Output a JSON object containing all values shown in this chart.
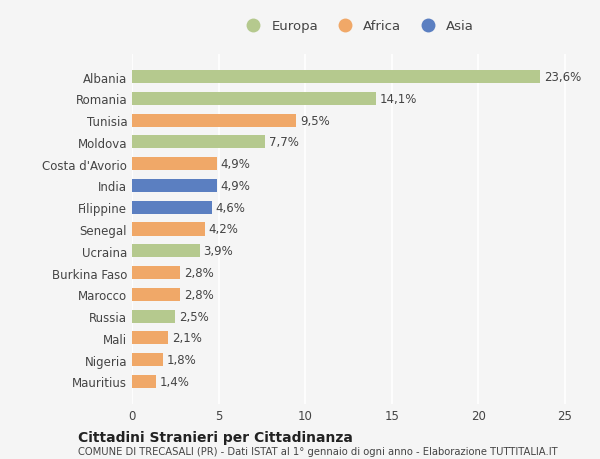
{
  "categories": [
    "Albania",
    "Romania",
    "Tunisia",
    "Moldova",
    "Costa d'Avorio",
    "India",
    "Filippine",
    "Senegal",
    "Ucraina",
    "Burkina Faso",
    "Marocco",
    "Russia",
    "Mali",
    "Nigeria",
    "Mauritius"
  ],
  "values": [
    23.6,
    14.1,
    9.5,
    7.7,
    4.9,
    4.9,
    4.6,
    4.2,
    3.9,
    2.8,
    2.8,
    2.5,
    2.1,
    1.8,
    1.4
  ],
  "labels": [
    "23,6%",
    "14,1%",
    "9,5%",
    "7,7%",
    "4,9%",
    "4,9%",
    "4,6%",
    "4,2%",
    "3,9%",
    "2,8%",
    "2,8%",
    "2,5%",
    "2,1%",
    "1,8%",
    "1,4%"
  ],
  "continents": [
    "Europa",
    "Europa",
    "Africa",
    "Europa",
    "Africa",
    "Asia",
    "Asia",
    "Africa",
    "Europa",
    "Africa",
    "Africa",
    "Europa",
    "Africa",
    "Africa",
    "Africa"
  ],
  "continent_colors": {
    "Europa": "#b5c98e",
    "Africa": "#f0a868",
    "Asia": "#5b7fc1"
  },
  "legend_order": [
    "Europa",
    "Africa",
    "Asia"
  ],
  "xlim": [
    0,
    26
  ],
  "xticks": [
    0,
    5,
    10,
    15,
    20,
    25
  ],
  "background_color": "#f5f5f5",
  "bar_height": 0.6,
  "title_main": "Cittadini Stranieri per Cittadinanza",
  "title_sub": "COMUNE DI TRECASALI (PR) - Dati ISTAT al 1° gennaio di ogni anno - Elaborazione TUTTITALIA.IT",
  "label_fontsize": 8.5,
  "tick_fontsize": 8.5,
  "grid_color": "#ffffff"
}
